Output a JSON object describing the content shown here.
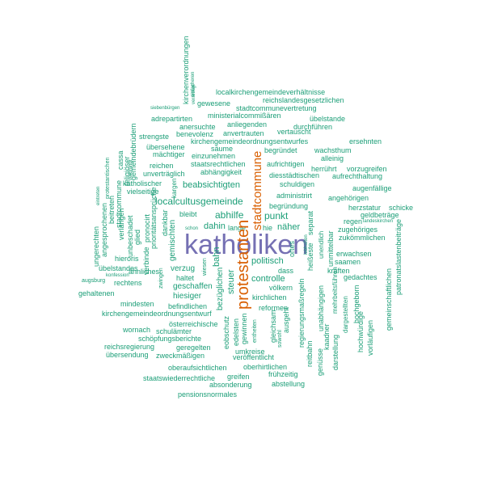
{
  "colors": {
    "teal": "#1b9e77",
    "orange": "#d95f02",
    "purple": "#7570b3"
  },
  "words": [
    {
      "text": "katholiken",
      "size": 34,
      "color": "purple",
      "rot": 0
    },
    {
      "text": "protestanten",
      "size": 20,
      "color": "orange",
      "rot": -90
    },
    {
      "text": "stadtcommune",
      "size": 15,
      "color": "orange",
      "rot": -90
    },
    {
      "text": "localcultusgemeinde",
      "size": 12,
      "color": "teal",
      "rot": 0
    },
    {
      "text": "abhilfe",
      "size": 12,
      "color": "teal",
      "rot": 0
    },
    {
      "text": "punkt",
      "size": 12,
      "color": "teal",
      "rot": 0
    },
    {
      "text": "dahin",
      "size": 11,
      "color": "teal",
      "rot": 0
    },
    {
      "text": "politisch",
      "size": 11,
      "color": "teal",
      "rot": 0
    },
    {
      "text": "controlle",
      "size": 11,
      "color": "teal",
      "rot": 0
    },
    {
      "text": "beabsichtigten",
      "size": 11,
      "color": "teal",
      "rot": 0
    },
    {
      "text": "bahn",
      "size": 11,
      "color": "teal",
      "rot": -90
    },
    {
      "text": "steuer",
      "size": 11,
      "color": "teal",
      "rot": -90
    },
    {
      "text": "näher",
      "size": 11,
      "color": "teal",
      "rot": 0
    },
    {
      "text": "lange",
      "size": 9,
      "color": "teal",
      "rot": 0
    },
    {
      "text": "gemischten",
      "size": 10,
      "color": "teal",
      "rot": -90
    },
    {
      "text": "bezüglichen",
      "size": 10,
      "color": "teal",
      "rot": -90
    },
    {
      "text": "verzug",
      "size": 10,
      "color": "teal",
      "rot": 0
    },
    {
      "text": "geschaffen",
      "size": 10,
      "color": "teal",
      "rot": 0
    },
    {
      "text": "hiesiger",
      "size": 10,
      "color": "teal",
      "rot": 0
    },
    {
      "text": "kirchlichen",
      "size": 9,
      "color": "teal",
      "rot": 0
    },
    {
      "text": "reformen",
      "size": 9,
      "color": "teal",
      "rot": 0
    },
    {
      "text": "localkirchengemeindeverhältnisse",
      "size": 9,
      "color": "teal",
      "rot": 0
    },
    {
      "text": "reichslandesgesetzlichen",
      "size": 9,
      "color": "teal",
      "rot": 0
    },
    {
      "text": "gewesene",
      "size": 9,
      "color": "teal",
      "rot": 0
    },
    {
      "text": "stadtcommunevertretung",
      "size": 9,
      "color": "teal",
      "rot": 0
    },
    {
      "text": "ministerialcommißären",
      "size": 9,
      "color": "teal",
      "rot": 0
    },
    {
      "text": "adrepartirten",
      "size": 9,
      "color": "teal",
      "rot": 0
    },
    {
      "text": "übelstande",
      "size": 9,
      "color": "teal",
      "rot": 0
    },
    {
      "text": "anliegenden",
      "size": 9,
      "color": "teal",
      "rot": 0
    },
    {
      "text": "anersuchte",
      "size": 9,
      "color": "teal",
      "rot": 0
    },
    {
      "text": "durchführen",
      "size": 9,
      "color": "teal",
      "rot": 0
    },
    {
      "text": "benevolenz",
      "size": 9,
      "color": "teal",
      "rot": 0
    },
    {
      "text": "anvertrauten",
      "size": 9,
      "color": "teal",
      "rot": 0
    },
    {
      "text": "vertauscht",
      "size": 9,
      "color": "teal",
      "rot": 0
    },
    {
      "text": "strengste",
      "size": 9,
      "color": "teal",
      "rot": 0
    },
    {
      "text": "ersehnten",
      "size": 9,
      "color": "teal",
      "rot": 0
    },
    {
      "text": "kirchengemeindeordnungsentwurfes",
      "size": 9,
      "color": "teal",
      "rot": 0
    },
    {
      "text": "übersehene",
      "size": 9,
      "color": "teal",
      "rot": 0
    },
    {
      "text": "säume",
      "size": 9,
      "color": "teal",
      "rot": 0
    },
    {
      "text": "begründet",
      "size": 9,
      "color": "teal",
      "rot": 0
    },
    {
      "text": "wachsthum",
      "size": 9,
      "color": "teal",
      "rot": 0
    },
    {
      "text": "mächtiger",
      "size": 9,
      "color": "teal",
      "rot": 0
    },
    {
      "text": "einzunehmen",
      "size": 9,
      "color": "teal",
      "rot": 0
    },
    {
      "text": "alleinig",
      "size": 9,
      "color": "teal",
      "rot": 0
    },
    {
      "text": "reichen",
      "size": 9,
      "color": "teal",
      "rot": 0
    },
    {
      "text": "staatsrechtlichen",
      "size": 9,
      "color": "teal",
      "rot": 0
    },
    {
      "text": "aufrichtigen",
      "size": 9,
      "color": "teal",
      "rot": 0
    },
    {
      "text": "herrührt",
      "size": 9,
      "color": "teal",
      "rot": 0
    },
    {
      "text": "vorzugreifen",
      "size": 9,
      "color": "teal",
      "rot": 0
    },
    {
      "text": "unverträglich",
      "size": 9,
      "color": "teal",
      "rot": 0
    },
    {
      "text": "abhängigkeit",
      "size": 9,
      "color": "teal",
      "rot": 0
    },
    {
      "text": "diesstädtischen",
      "size": 9,
      "color": "teal",
      "rot": 0
    },
    {
      "text": "aufrechthaltung",
      "size": 9,
      "color": "teal",
      "rot": 0
    },
    {
      "text": "katholischer",
      "size": 9,
      "color": "teal",
      "rot": 0
    },
    {
      "text": "schuldigen",
      "size": 9,
      "color": "teal",
      "rot": 0
    },
    {
      "text": "augenfällige",
      "size": 9,
      "color": "teal",
      "rot": 0
    },
    {
      "text": "vielseitige",
      "size": 9,
      "color": "teal",
      "rot": 0
    },
    {
      "text": "administrirt",
      "size": 9,
      "color": "teal",
      "rot": 0
    },
    {
      "text": "angehörigen",
      "size": 9,
      "color": "teal",
      "rot": 0
    },
    {
      "text": "begründung",
      "size": 9,
      "color": "teal",
      "rot": 0
    },
    {
      "text": "herzstatur",
      "size": 9,
      "color": "teal",
      "rot": 0
    },
    {
      "text": "schicke",
      "size": 9,
      "color": "teal",
      "rot": 0
    },
    {
      "text": "bleibt",
      "size": 9,
      "color": "teal",
      "rot": 0
    },
    {
      "text": "geldbeträge",
      "size": 9,
      "color": "teal",
      "rot": 0
    },
    {
      "text": "regen",
      "size": 9,
      "color": "teal",
      "rot": 0
    },
    {
      "text": "zugehöriges",
      "size": 9,
      "color": "teal",
      "rot": 0
    },
    {
      "text": "zukömmlichen",
      "size": 9,
      "color": "teal",
      "rot": 0
    },
    {
      "text": "erwachsen",
      "size": 9,
      "color": "teal",
      "rot": 0
    },
    {
      "text": "saamen",
      "size": 9,
      "color": "teal",
      "rot": 0
    },
    {
      "text": "kräften",
      "size": 9,
      "color": "teal",
      "rot": 0
    },
    {
      "text": "gedachtes",
      "size": 9,
      "color": "teal",
      "rot": 0
    },
    {
      "text": "haltet",
      "size": 9,
      "color": "teal",
      "rot": 0
    },
    {
      "text": "völkern",
      "size": 9,
      "color": "teal",
      "rot": 0
    },
    {
      "text": "dass",
      "size": 9,
      "color": "teal",
      "rot": 0
    },
    {
      "text": "hieroris",
      "size": 9,
      "color": "teal",
      "rot": 0
    },
    {
      "text": "übelstandes",
      "size": 9,
      "color": "teal",
      "rot": 0
    },
    {
      "text": "rechtens",
      "size": 9,
      "color": "teal",
      "rot": 0
    },
    {
      "text": "ähnliches",
      "size": 9,
      "color": "teal",
      "rot": 0
    },
    {
      "text": "gehaltenen",
      "size": 9,
      "color": "teal",
      "rot": 0
    },
    {
      "text": "mindesten",
      "size": 9,
      "color": "teal",
      "rot": 0
    },
    {
      "text": "befindlichen",
      "size": 9,
      "color": "teal",
      "rot": 0
    },
    {
      "text": "kirchengemeindeordnungsentwurf",
      "size": 9,
      "color": "teal",
      "rot": 0
    },
    {
      "text": "österreichische",
      "size": 9,
      "color": "teal",
      "rot": 0
    },
    {
      "text": "wornach",
      "size": 9,
      "color": "teal",
      "rot": 0
    },
    {
      "text": "schulämter",
      "size": 9,
      "color": "teal",
      "rot": 0
    },
    {
      "text": "schöpfungsberichte",
      "size": 9,
      "color": "teal",
      "rot": 0
    },
    {
      "text": "reichsregierung",
      "size": 9,
      "color": "teal",
      "rot": 0
    },
    {
      "text": "geregelten",
      "size": 9,
      "color": "teal",
      "rot": 0
    },
    {
      "text": "übersendung",
      "size": 9,
      "color": "teal",
      "rot": 0
    },
    {
      "text": "zweckmäßigen",
      "size": 9,
      "color": "teal",
      "rot": 0
    },
    {
      "text": "umkreise",
      "size": 9,
      "color": "teal",
      "rot": 0
    },
    {
      "text": "veröffentlicht",
      "size": 9,
      "color": "teal",
      "rot": 0
    },
    {
      "text": "oberaufsichtlichen",
      "size": 9,
      "color": "teal",
      "rot": 0
    },
    {
      "text": "oberhirtlichen",
      "size": 9,
      "color": "teal",
      "rot": 0
    },
    {
      "text": "staatswiederrechtliche",
      "size": 9,
      "color": "teal",
      "rot": 0
    },
    {
      "text": "greifen",
      "size": 9,
      "color": "teal",
      "rot": 0
    },
    {
      "text": "frühzeitig",
      "size": 9,
      "color": "teal",
      "rot": 0
    },
    {
      "text": "absonderung",
      "size": 9,
      "color": "teal",
      "rot": 0
    },
    {
      "text": "abstellung",
      "size": 9,
      "color": "teal",
      "rot": 0
    },
    {
      "text": "pensionsnormales",
      "size": 9,
      "color": "teal",
      "rot": 0
    },
    {
      "text": "hie",
      "size": 9,
      "color": "teal",
      "rot": 0
    },
    {
      "text": "schon",
      "size": 6,
      "color": "teal",
      "rot": 0
    },
    {
      "text": "augsburg",
      "size": 7,
      "color": "teal",
      "rot": 0
    },
    {
      "text": "konfession",
      "size": 6,
      "color": "teal",
      "rot": 0
    },
    {
      "text": "siebenbürgen",
      "size": 6,
      "color": "teal",
      "rot": 0
    },
    {
      "text": "landeskirchen",
      "size": 6,
      "color": "teal",
      "rot": 0
    },
    {
      "text": "gemeindebrüdern",
      "size": 9,
      "color": "teal",
      "rot": -90
    },
    {
      "text": "religiöser",
      "size": 9,
      "color": "teal",
      "rot": -90
    },
    {
      "text": "protestantischen",
      "size": 7,
      "color": "teal",
      "rot": -90
    },
    {
      "text": "cassa",
      "size": 9,
      "color": "teal",
      "rot": -90
    },
    {
      "text": "stadtcommune",
      "size": 9,
      "color": "teal",
      "rot": -90
    },
    {
      "text": "beitreten",
      "size": 9,
      "color": "teal",
      "rot": -90
    },
    {
      "text": "angesprochenen",
      "size": 9,
      "color": "teal",
      "rot": -90
    },
    {
      "text": "ungerechten",
      "size": 9,
      "color": "teal",
      "rot": -90
    },
    {
      "text": "verlangen",
      "size": 9,
      "color": "teal",
      "rot": -90
    },
    {
      "text": "unbeschadet",
      "size": 9,
      "color": "teal",
      "rot": -90
    },
    {
      "text": "glied",
      "size": 9,
      "color": "teal",
      "rot": -90
    },
    {
      "text": "pronocirt",
      "size": 9,
      "color": "teal",
      "rot": -90
    },
    {
      "text": "prioritätsansprüche",
      "size": 9,
      "color": "teal",
      "rot": -90
    },
    {
      "text": "dankbar",
      "size": 9,
      "color": "teal",
      "rot": -90
    },
    {
      "text": "verbinde",
      "size": 9,
      "color": "teal",
      "rot": -90
    },
    {
      "text": "zwingen",
      "size": 7,
      "color": "teal",
      "rot": -90
    },
    {
      "text": "wiesen",
      "size": 7,
      "color": "teal",
      "rot": -90
    },
    {
      "text": "kargen",
      "size": 8,
      "color": "teal",
      "rot": -90
    },
    {
      "text": "einfacheren",
      "size": 6,
      "color": "teal",
      "rot": -90
    },
    {
      "text": "eintreten",
      "size": 6,
      "color": "teal",
      "rot": -90
    },
    {
      "text": "verdrängt",
      "size": 6,
      "color": "teal",
      "rot": -90
    },
    {
      "text": "eobschutz",
      "size": 9,
      "color": "teal",
      "rot": -90
    },
    {
      "text": "edelsten",
      "size": 9,
      "color": "teal",
      "rot": -90
    },
    {
      "text": "gewinnen",
      "size": 9,
      "color": "teal",
      "rot": -90
    },
    {
      "text": "entheiten",
      "size": 7,
      "color": "teal",
      "rot": -90
    },
    {
      "text": "gleichsam",
      "size": 9,
      "color": "teal",
      "rot": -90
    },
    {
      "text": "sowohl",
      "size": 7,
      "color": "teal",
      "rot": -90
    },
    {
      "text": "ausgeht",
      "size": 9,
      "color": "teal",
      "rot": -90
    },
    {
      "text": "ortes",
      "size": 9,
      "color": "teal",
      "rot": -90
    },
    {
      "text": "heißeste",
      "size": 9,
      "color": "teal",
      "rot": -90
    },
    {
      "text": "separat",
      "size": 9,
      "color": "teal",
      "rot": -90
    },
    {
      "text": "unendlich",
      "size": 8,
      "color": "teal",
      "rot": -90
    },
    {
      "text": "unabhängigen",
      "size": 9,
      "color": "teal",
      "rot": -90
    },
    {
      "text": "regierungsmaßregeln",
      "size": 9,
      "color": "teal",
      "rot": -90
    },
    {
      "text": "reitbahn",
      "size": 9,
      "color": "teal",
      "rot": -90
    },
    {
      "text": "genüsse",
      "size": 9,
      "color": "teal",
      "rot": -90
    },
    {
      "text": "kaadner",
      "size": 9,
      "color": "teal",
      "rot": -90
    },
    {
      "text": "darstellung",
      "size": 9,
      "color": "teal",
      "rot": -90
    },
    {
      "text": "mehrbeitsführen",
      "size": 8,
      "color": "teal",
      "rot": -90
    },
    {
      "text": "unmittelbar",
      "size": 9,
      "color": "teal",
      "rot": -90
    },
    {
      "text": "dargestellten",
      "size": 8,
      "color": "teal",
      "rot": -90
    },
    {
      "text": "hochgeborn",
      "size": 9,
      "color": "teal",
      "rot": -90
    },
    {
      "text": "vorläufigen",
      "size": 9,
      "color": "teal",
      "rot": -90
    },
    {
      "text": "hochwürdige",
      "size": 9,
      "color": "teal",
      "rot": -90
    },
    {
      "text": "gemeinschaftlichen",
      "size": 9,
      "color": "teal",
      "rot": -90
    },
    {
      "text": "patronatslastenbeiträge",
      "size": 9,
      "color": "teal",
      "rot": -90
    },
    {
      "text": "kirchenverordnungen",
      "size": 9,
      "color": "teal",
      "rot": -90
    },
    {
      "text": "veranlagt",
      "size": 6,
      "color": "teal",
      "rot": -90
    },
    {
      "text": "lebhaften",
      "size": 6,
      "color": "teal",
      "rot": -90
    },
    {
      "text": "behandelt",
      "size": 6,
      "color": "teal",
      "rot": -90
    }
  ]
}
